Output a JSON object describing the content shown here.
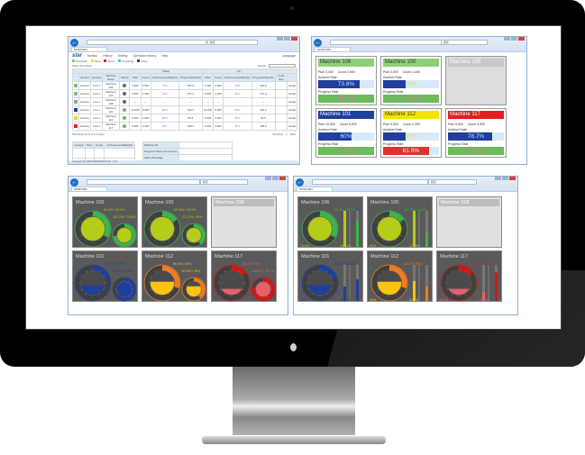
{
  "colors": {
    "green": "#3cb44b",
    "lime": "#b5cc18",
    "blue": "#1f3e9e",
    "orange": "#f07c1e",
    "yellow": "#ffc20e",
    "red": "#d01818",
    "pink": "#e8606a",
    "gray": "#bdbdbd"
  },
  "browser": {
    "search_placeholder": "検索...",
    "tab_title": "SPIDOSB-I"
  },
  "table_window": {
    "menu": [
      "Monitor",
      "History",
      "Setting",
      "Operation history",
      "Help"
    ],
    "language": "Language",
    "legend": [
      "Operation",
      "Stop",
      "Alarm",
      "Preparing",
      "Other"
    ],
    "show_label": "Show 10 entries",
    "search_label": "Search:",
    "headers": [
      "Group1",
      "Group2",
      "Machine Name",
      "Status",
      "Plan",
      "Count",
      "AchievementRate(%)",
      "ProgressRate(%)",
      "Plan",
      "Count",
      "AchievementRate(%)",
      "ProgressRate(%)",
      "Cycle time",
      ""
    ],
    "group_today": "Today",
    "group_all": "All",
    "rows": [
      {
        "color": "#7cc36b",
        "g1": "Factory",
        "g2": "Line 1",
        "name": "Machine 106",
        "plan": "3,400",
        "count": "2,500",
        "ach": "73.6",
        "prog": "192.2",
        "detail": "Detail"
      },
      {
        "color": "#7cc36b",
        "g1": "Factory",
        "g2": "Line 1",
        "name": "Machine 100",
        "plan": "3,500",
        "count": "1,400",
        "ach": "40.0",
        "prog": "271.4",
        "detail": "Detail"
      },
      {
        "color": "#9e9e9e",
        "g1": "Factory",
        "g2": "Line 1",
        "name": "Machine 108",
        "plan": "---",
        "count": "---",
        "ach": "---",
        "prog": "---",
        "detail": "Detail"
      },
      {
        "color": "#1f3e9e",
        "g1": "Factory",
        "g2": "Line 1",
        "name": "Machine 101",
        "plan": "10,000",
        "count": "6,000",
        "ach": "60.0",
        "prog": "132.2",
        "detail": "Detail"
      },
      {
        "color": "#f0e000",
        "g1": "Factory",
        "g2": "Line 1",
        "name": "Machine 112",
        "plan": "5,000",
        "count": "2,000",
        "ach": "40.0",
        "prog": "81.5",
        "detail": "Detail"
      },
      {
        "color": "#e02020",
        "g1": "Factory",
        "g2": "Line 1",
        "name": "Machine 117",
        "plan": "5,000",
        "count": "3,900",
        "ach": "78.7",
        "prog": "198.2",
        "detail": "Detail"
      }
    ],
    "showing": "Showing 1 to 6 of 6 entries",
    "pager": [
      "Previous",
      "1",
      "Next"
    ],
    "summary_headers": [
      "Group1",
      "Plan",
      "Count",
      "AchievementRate(%)"
    ],
    "message_labels": [
      "Machine ID",
      "Program Name (Comment)",
      "Alarm Message",
      "Operator Message"
    ],
    "operator_message": "ONE TOOL LIFE COUNTER COUNT UP",
    "footer": "Copyright (C) STAR MICRONICS CO., LTD."
  },
  "machines": [
    {
      "name": "Machine 106",
      "color": "green",
      "fill": "lime",
      "plan_label": "Plan",
      "plan": "3,400",
      "count_label": "Count",
      "count": "2,500",
      "achieve_label": "Achieve Rate",
      "achieve": 73.6,
      "achieve_text": "73.6%",
      "progress_label": "Progress Rate",
      "progress": 192.2,
      "progress_text": "192.2%",
      "title_bg": "#8fcf7a",
      "ach_bar": "#1f3e9e",
      "prog_bar": "#6cbb5c",
      "g1": "92.3% / 33.3%",
      "g2": "192.2% / 73.6%",
      "rate_big": 0.333,
      "rate_small": 0.736,
      "level_big": 1,
      "level_small": 1,
      "bar_a": "192.2%",
      "bar_b": "73.6%"
    },
    {
      "name": "Machine 100",
      "color": "green",
      "fill": "lime",
      "plan_label": "Plan",
      "plan": "3,500",
      "count_label": "Count",
      "count": "1,400",
      "achieve_label": "Achieve Rate",
      "achieve": 40,
      "achieve_text": "40%",
      "progress_label": "Progress Rate",
      "progress": 271.4,
      "progress_text": "271.4%",
      "title_bg": "#8fcf7a",
      "ach_bar": "#1f3e9e",
      "prog_bar": "#6cbb5c",
      "g1": "137.8% / 15.9%",
      "g2": "271.4% / 40%",
      "rate_big": 0.159,
      "rate_small": 0.4,
      "level_big": 1,
      "level_small": 1,
      "bar_a": "271.4%",
      "bar_b": "40%"
    },
    {
      "name": "Machine 108",
      "color": "gray",
      "empty": true,
      "title_bg": "#c8c8c8"
    },
    {
      "name": "Machine 101",
      "color": "blue",
      "fill": "blue",
      "plan_label": "Plan",
      "plan": "10,000",
      "count_label": "Count",
      "count": "6,000",
      "achieve_label": "Achieve Rate",
      "achieve": 60,
      "achieve_text": "60%",
      "progress_label": "Progress Rate",
      "progress": 132.2,
      "progress_text": "132.2%",
      "title_bg": "#1f3e9e",
      "ach_bar": "#1f3e9e",
      "prog_bar": "#6cbb5c",
      "g1": "40.1% / 19.9%",
      "g2": "132.2% / 60%",
      "rate_big": 0.199,
      "rate_small": 0.6,
      "level_big": 0.4,
      "level_small": 1,
      "bar_a": "132.2%",
      "bar_b": "60%"
    },
    {
      "name": "Machine 112",
      "color": "orange",
      "fill": "yellow",
      "plan_label": "Plan",
      "plan": "5,000",
      "count_label": "Count",
      "count": "2,000",
      "achieve_label": "Achieve Rate",
      "achieve": 40,
      "achieve_text": "40%",
      "progress_label": "Progress Rate",
      "progress": 81.5,
      "progress_text": "81.5%",
      "title_bg": "#f2e600",
      "ach_bar": "#1f3e9e",
      "prog_bar": "#e03030",
      "g1": "68.1% / 30%",
      "g2": "81.5% / 40%",
      "rate_big": 0.3,
      "rate_small": 0.4,
      "level_big": 0.55,
      "level_small": 0.7,
      "bar_a": "81.5%",
      "bar_b": "40%"
    },
    {
      "name": "Machine 117",
      "color": "red",
      "fill": "pink",
      "plan_label": "Plan",
      "plan": "5,000",
      "count_label": "Count",
      "count": "3,900",
      "achieve_label": "Achieve Rate",
      "achieve": 78.7,
      "achieve_text": "78.7%",
      "progress_label": "Progress Rate",
      "progress": 198.2,
      "progress_text": "198.2%",
      "title_bg": "#e02020",
      "ach_bar": "#1f3e9e",
      "prog_bar": "#6cbb5c",
      "g1": "20.4% / 15%",
      "g2": "198.2% / 78.7%",
      "rate_big": 0.15,
      "rate_small": 0.787,
      "level_big": 0.25,
      "level_small": 1,
      "bar_a": "198.2%",
      "bar_b": "78.7%"
    }
  ]
}
